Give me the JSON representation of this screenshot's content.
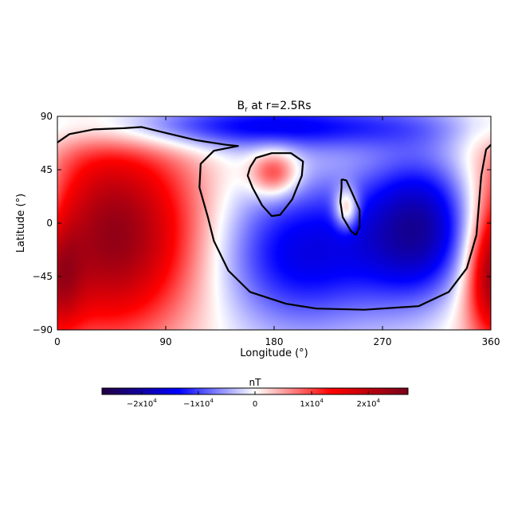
{
  "chart_data": {
    "type": "heatmap",
    "title": "B",
    "title_subscript": "r",
    "title_suffix": " at r=2.5Rs",
    "xlabel": "Longitude (°)",
    "ylabel": "Latitude (°)",
    "xlim": [
      0,
      360
    ],
    "ylim": [
      -90,
      90
    ],
    "x_ticks": [
      0,
      90,
      180,
      270,
      360
    ],
    "x_tick_labels": [
      "0",
      "90",
      "180",
      "270",
      "360"
    ],
    "y_ticks": [
      90,
      45,
      0,
      -45,
      -90
    ],
    "y_tick_labels": [
      "90",
      "45",
      "0",
      "−45",
      "−90"
    ],
    "colorbar": {
      "label": "nT",
      "range": [
        -27000,
        27000
      ],
      "ticks": [
        -20000,
        -10000,
        0,
        10000,
        20000
      ],
      "tick_labels": [
        {
          "base": "−2x10",
          "exp": "4"
        },
        {
          "base": "−1x10",
          "exp": "4"
        },
        {
          "base": "0",
          "exp": ""
        },
        {
          "base": "1x10",
          "exp": "4"
        },
        {
          "base": "2x10",
          "exp": "4"
        }
      ],
      "colors": [
        "#220040",
        "#0000ff",
        "#ffffff",
        "#ff0000",
        "#78001a"
      ]
    },
    "field_sources": [
      {
        "lon": 40,
        "lat": -10,
        "amplitude": 26000,
        "spread_lon": 55,
        "spread_lat": 60
      },
      {
        "lon": 310,
        "lat": -5,
        "amplitude": -25000,
        "spread_lon": 40,
        "spread_lat": 45
      },
      {
        "lon": 200,
        "lat": -25,
        "amplitude": -15000,
        "spread_lon": 50,
        "spread_lat": 45
      },
      {
        "lon": 165,
        "lat": 82,
        "amplitude": -14000,
        "spread_lon": 110,
        "spread_lat": 14
      },
      {
        "lon": 180,
        "lat": 42,
        "amplitude": 13000,
        "spread_lon": 14,
        "spread_lat": 14
      },
      {
        "lon": 240,
        "lat": 12,
        "amplitude": 14000,
        "spread_lon": 7,
        "spread_lat": 12
      },
      {
        "lon": 360,
        "lat": -45,
        "amplitude": 14000,
        "spread_lon": 14,
        "spread_lat": 35
      }
    ],
    "zero_contours": [
      [
        [
          0,
          68
        ],
        [
          10,
          75
        ],
        [
          30,
          79
        ],
        [
          55,
          80
        ],
        [
          70,
          81
        ],
        [
          90,
          76
        ],
        [
          115,
          70
        ],
        [
          140,
          66
        ],
        [
          150,
          65
        ],
        [
          130,
          61
        ],
        [
          119,
          50
        ],
        [
          118,
          30
        ],
        [
          125,
          5
        ],
        [
          130,
          -15
        ],
        [
          142,
          -40
        ],
        [
          160,
          -58
        ],
        [
          190,
          -68
        ],
        [
          215,
          -72
        ],
        [
          255,
          -73
        ],
        [
          300,
          -70
        ],
        [
          325,
          -58
        ],
        [
          340,
          -38
        ],
        [
          348,
          -10
        ],
        [
          350,
          15
        ],
        [
          352,
          40
        ],
        [
          356,
          62
        ],
        [
          360,
          66
        ]
      ],
      [
        [
          160,
          47
        ],
        [
          165,
          55
        ],
        [
          178,
          59
        ],
        [
          194,
          59
        ],
        [
          204,
          52
        ],
        [
          203,
          40
        ],
        [
          195,
          20
        ],
        [
          185,
          7
        ],
        [
          178,
          6
        ],
        [
          170,
          15
        ],
        [
          162,
          30
        ],
        [
          158,
          40
        ],
        [
          160,
          47
        ]
      ],
      [
        [
          236,
          37
        ],
        [
          240,
          36
        ],
        [
          245,
          25
        ],
        [
          251,
          11
        ],
        [
          251,
          -3
        ],
        [
          248,
          -10
        ],
        [
          244,
          -7
        ],
        [
          237,
          5
        ],
        [
          235,
          18
        ],
        [
          236,
          30
        ],
        [
          236,
          37
        ]
      ]
    ]
  }
}
